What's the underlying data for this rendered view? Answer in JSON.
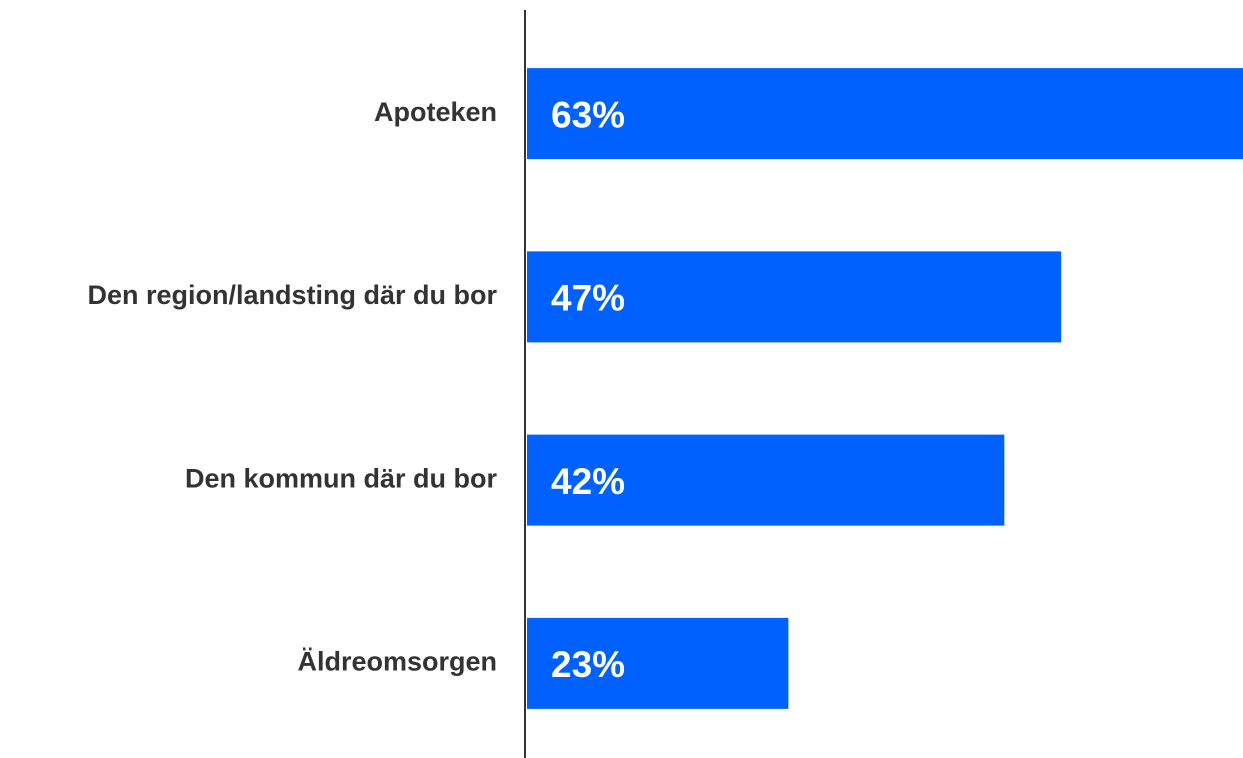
{
  "chart_data": {
    "type": "hbar",
    "categories": [
      "Apoteken",
      "Den region/landsting där du bor",
      "Den kommun där du bor",
      "Äldreomsorgen"
    ],
    "values": [
      63,
      47,
      42,
      23
    ],
    "value_labels": [
      "63%",
      "47%",
      "42%",
      "23%"
    ],
    "color": "#0061fe",
    "xlim": [
      0,
      63
    ]
  }
}
